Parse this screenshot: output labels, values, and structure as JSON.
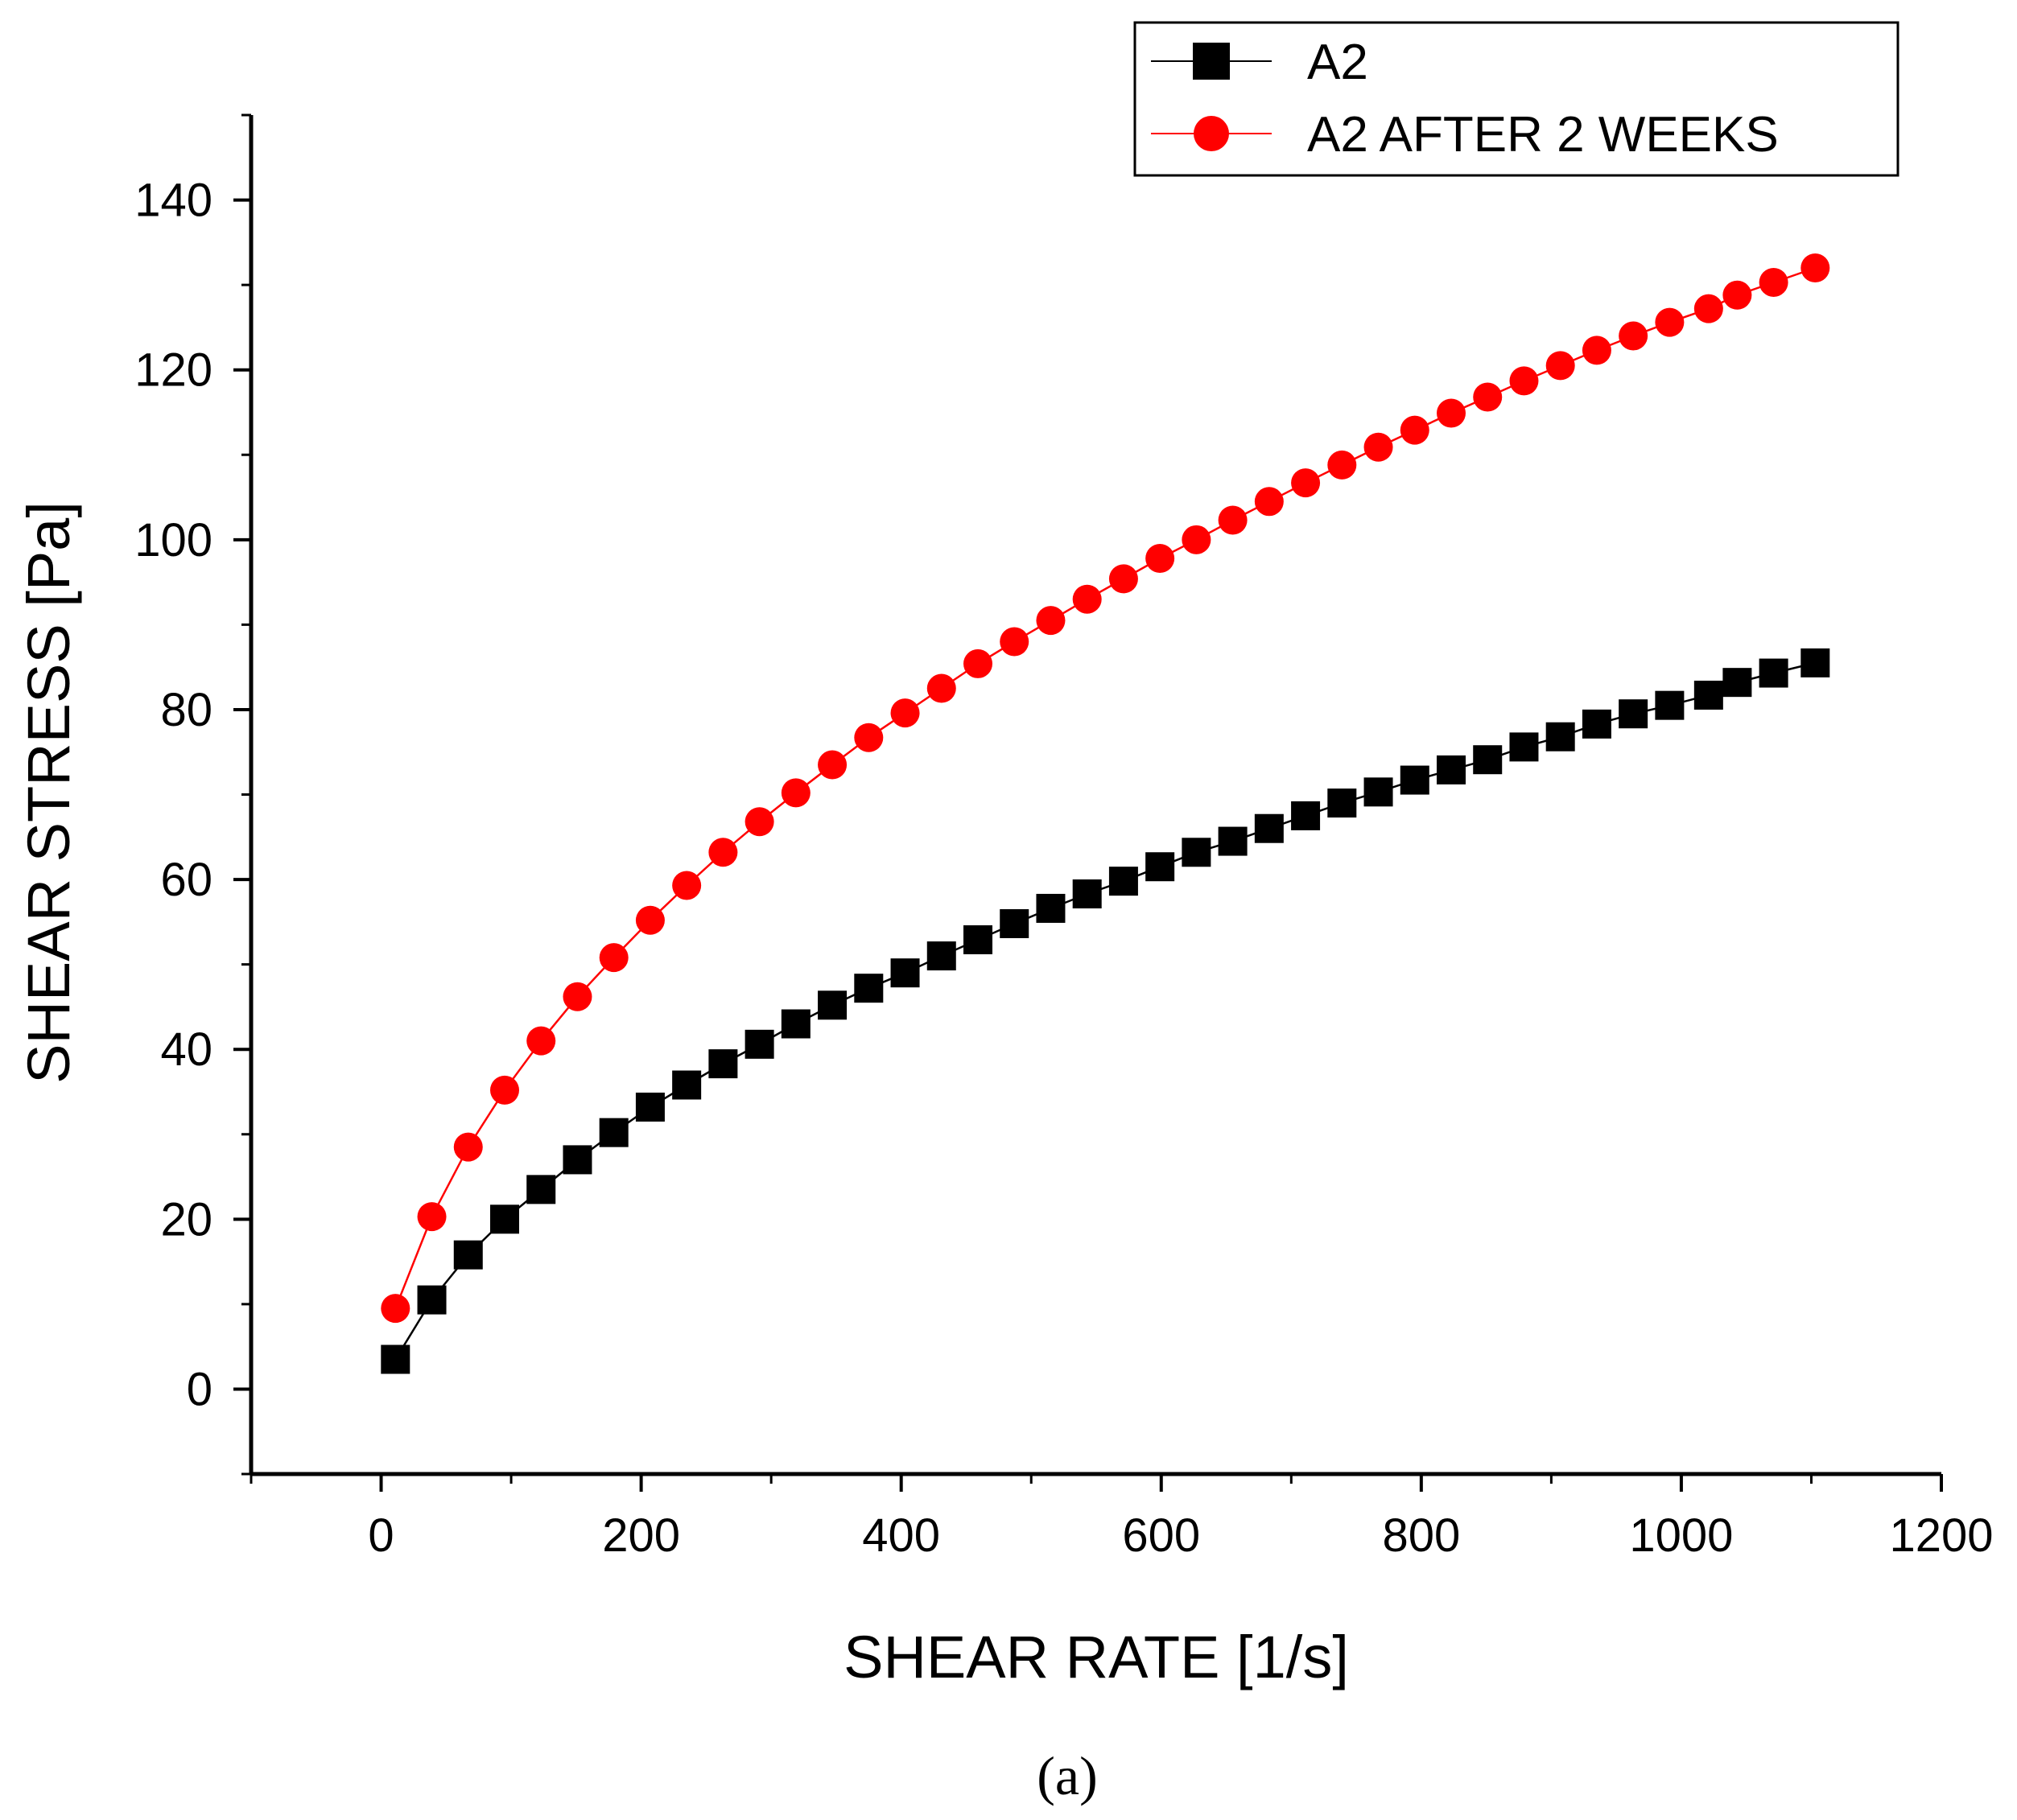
{
  "chart_data": {
    "type": "line",
    "title": "",
    "caption": "(a)",
    "xlabel": "SHEAR RATE [1/s]",
    "ylabel": "SHEAR STRESS [Pa]",
    "xlim": [
      -100,
      1200
    ],
    "ylim": [
      -10,
      150
    ],
    "xticks": [
      0,
      200,
      400,
      600,
      800,
      1000,
      1200
    ],
    "xtick_labels": [
      "0",
      "200",
      "400",
      "600",
      "800",
      "1000",
      "1200"
    ],
    "yticks": [
      0,
      20,
      40,
      60,
      80,
      100,
      120,
      140
    ],
    "ytick_labels": [
      "0",
      "20",
      "40",
      "60",
      "80",
      "100",
      "120",
      "140"
    ],
    "grid": false,
    "legend_position": "top-right",
    "series": [
      {
        "name": "A2",
        "color": "#000000",
        "marker": "square",
        "x": [
          11,
          39,
          67,
          95,
          123,
          151,
          179,
          207,
          235,
          263,
          291,
          319,
          347,
          375,
          403,
          431,
          459,
          487,
          515,
          543,
          571,
          599,
          627,
          655,
          683,
          711,
          739,
          767,
          795,
          823,
          851,
          879,
          907,
          935,
          963,
          991,
          1021,
          1043,
          1071,
          1103
        ],
        "y": [
          3.5,
          10.5,
          15.8,
          20.0,
          23.5,
          27.0,
          30.2,
          33.2,
          35.8,
          38.3,
          40.6,
          43.0,
          45.2,
          47.2,
          49.0,
          51.0,
          52.9,
          54.8,
          56.6,
          58.3,
          59.8,
          61.5,
          63.2,
          64.5,
          66.0,
          67.5,
          69.0,
          70.3,
          71.7,
          72.9,
          74.1,
          75.6,
          76.8,
          78.3,
          79.5,
          80.5,
          81.7,
          83.2,
          84.3,
          85.5
        ]
      },
      {
        "name": "A2 AFTER 2 WEEKS",
        "color": "#ff0000",
        "marker": "circle",
        "x": [
          11,
          39,
          67,
          95,
          123,
          151,
          179,
          207,
          235,
          263,
          291,
          319,
          347,
          375,
          403,
          431,
          459,
          487,
          515,
          543,
          571,
          599,
          627,
          655,
          683,
          711,
          739,
          767,
          795,
          823,
          851,
          879,
          907,
          935,
          963,
          991,
          1021,
          1043,
          1071,
          1103
        ],
        "y": [
          9.5,
          20.3,
          28.5,
          35.2,
          41.0,
          46.2,
          50.8,
          55.2,
          59.3,
          63.2,
          66.8,
          70.2,
          73.5,
          76.7,
          79.6,
          82.5,
          85.4,
          88.0,
          90.5,
          93.0,
          95.4,
          97.8,
          100.0,
          102.3,
          104.5,
          106.7,
          108.8,
          110.9,
          112.9,
          114.9,
          116.8,
          118.7,
          120.5,
          122.3,
          124.0,
          125.6,
          127.2,
          128.8,
          130.3,
          132.0
        ]
      }
    ]
  }
}
